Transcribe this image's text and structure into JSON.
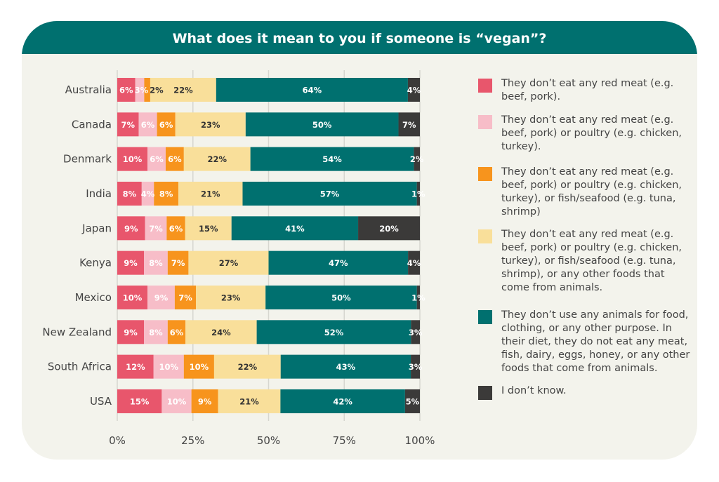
{
  "chart_data": {
    "type": "bar",
    "orientation": "horizontal",
    "stacked": true,
    "title": "What does it mean to you if someone is “vegan”?",
    "categories": [
      "Australia",
      "Canada",
      "Denmark",
      "India",
      "Japan",
      "Kenya",
      "Mexico",
      "New Zealand",
      "South Africa",
      "USA"
    ],
    "xlim": [
      0,
      100
    ],
    "x_ticks": [
      "0%",
      "25%",
      "50%",
      "75%",
      "100%"
    ],
    "grid": true,
    "legend_position": "right",
    "series": [
      {
        "name": "They don’t eat any red meat (e.g. beef, pork).",
        "color": "#e8566c",
        "label_color": "#ffffff",
        "values": [
          6,
          7,
          10,
          8,
          9,
          9,
          10,
          9,
          12,
          15
        ]
      },
      {
        "name": "They don’t eat any red meat (e.g. beef, pork) or poultry (e.g. chicken, turkey).",
        "color": "#f7bdc8",
        "label_color": "#ffffff",
        "values": [
          3,
          6,
          6,
          4,
          7,
          8,
          9,
          8,
          10,
          10
        ]
      },
      {
        "name": "They don’t eat any red meat (e.g. beef, pork) or poultry (e.g. chicken, turkey), or fish/seafood (e.g. tuna, shrimp)",
        "color": "#f7941d",
        "label_color": "#ffffff",
        "values": [
          2,
          6,
          6,
          8,
          6,
          7,
          7,
          6,
          10,
          9
        ]
      },
      {
        "name": "They don’t eat any red meat (e.g. beef, pork) or poultry (e.g. chicken, turkey), or fish/seafood (e.g. tuna, shrimp), or any other foods that come from animals.",
        "color": "#f9df9a",
        "label_color": "#333333",
        "values": [
          22,
          23,
          22,
          21,
          15,
          27,
          23,
          24,
          22,
          21
        ]
      },
      {
        "name": "They don’t use any animals for food, clothing, or any other purpose. In their diet, they do not eat any meat, fish, dairy, eggs, honey, or any other foods that come from animals.",
        "color": "#00706f",
        "label_color": "#ffffff",
        "values": [
          64,
          50,
          54,
          57,
          41,
          47,
          50,
          52,
          43,
          42
        ]
      },
      {
        "name": "I don’t know.",
        "color": "#3b3a39",
        "label_color": "#ffffff",
        "values": [
          4,
          7,
          2,
          1,
          20,
          4,
          1,
          3,
          3,
          5
        ]
      }
    ]
  }
}
